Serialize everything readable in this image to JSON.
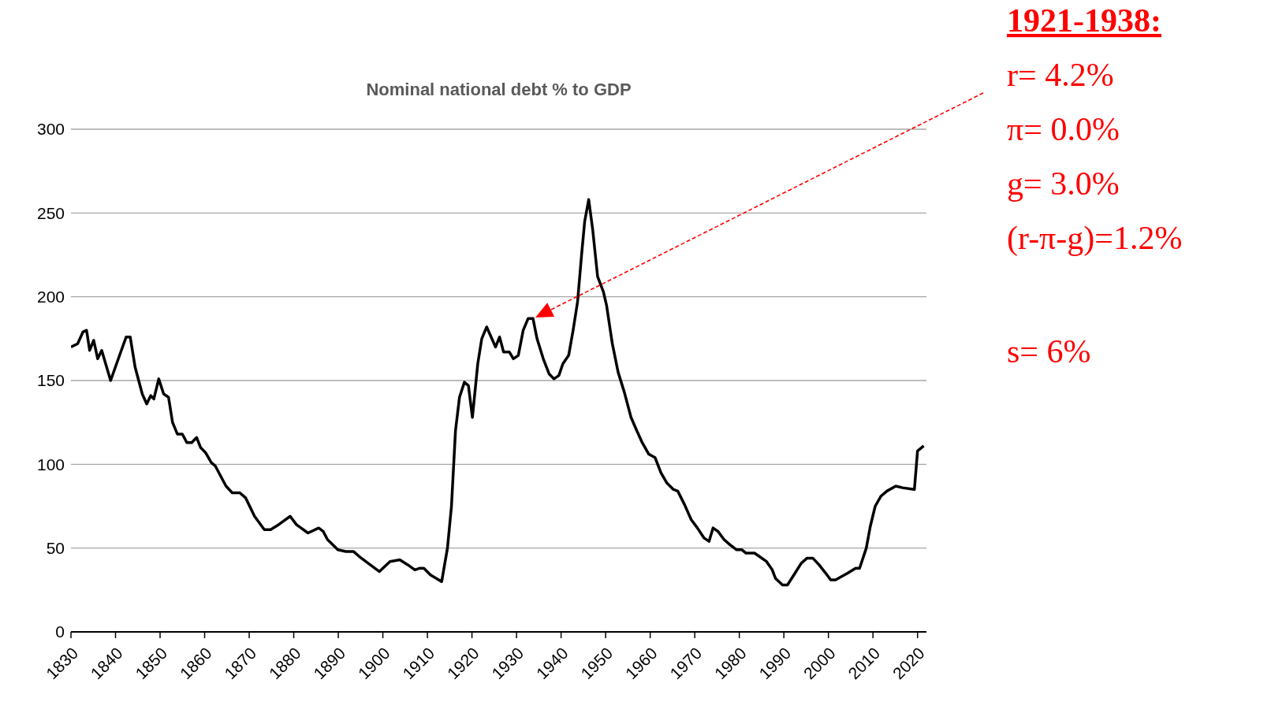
{
  "chart_data": {
    "type": "line",
    "title": "Nominal national debt % to GDP",
    "series": [
      {
        "color": "#000000",
        "x": [
          1830,
          1831.5,
          1832.7,
          1833.5,
          1834.2,
          1835.1,
          1836,
          1836.9,
          1838.9,
          1841.3,
          1842.4,
          1843.3,
          1844.4,
          1846,
          1847,
          1847.9,
          1848.6,
          1849.7,
          1850.8,
          1851.9,
          1852.8,
          1853.9,
          1855,
          1856,
          1857.1,
          1858.2,
          1859.1,
          1860.2,
          1861.5,
          1862.4,
          1864.8,
          1866.2,
          1867.9,
          1869.2,
          1871.2,
          1873.4,
          1874.8,
          1876.6,
          1879.2,
          1880.6,
          1883.2,
          1885.6,
          1886.6,
          1887.6,
          1889.9,
          1891.7,
          1893.4,
          1894.7,
          1896.7,
          1899.2,
          1901.6,
          1903.8,
          1905.6,
          1907.2,
          1908.3,
          1909.2,
          1910.7,
          1913.2,
          1914.5,
          1915.4,
          1916.3,
          1917.2,
          1918.3,
          1919.2,
          1920.1,
          1921.3,
          1922.2,
          1923.3,
          1925.3,
          1926.2,
          1927.1,
          1928.4,
          1929.3,
          1930.4,
          1931.5,
          1932.6,
          1933.7,
          1934.6,
          1936,
          1937.3,
          1938.4,
          1939.5,
          1940.4,
          1941.7,
          1942.7,
          1943.7,
          1944.6,
          1945.3,
          1946.2,
          1947.1,
          1948.2,
          1949.5,
          1950.2,
          1951.5,
          1952.8,
          1954.2,
          1955.7,
          1957,
          1958.2,
          1959.7,
          1961.1,
          1962.4,
          1963.7,
          1965.2,
          1966.2,
          1967.7,
          1969.2,
          1970.6,
          1972.1,
          1973.2,
          1974.1,
          1975.2,
          1976.6,
          1977.9,
          1979.4,
          1980.6,
          1981.5,
          1983.4,
          1984.5,
          1986.1,
          1987.4,
          1988.1,
          1989.7,
          1990.8,
          1992.5,
          1993.9,
          1995.2,
          1996.5,
          1997.9,
          1999.4,
          2000.5,
          2001.6,
          2004.3,
          2006.1,
          2007,
          2008.5,
          2009.4,
          2010.5,
          2011.8,
          2013.1,
          2015.1,
          2016.7,
          2019.3,
          2020,
          2021.4
        ],
        "values": [
          170,
          172,
          179,
          180,
          168,
          174,
          163,
          168,
          150,
          168,
          176,
          176,
          158,
          142,
          136,
          141,
          139,
          151,
          142,
          140,
          125,
          118,
          118,
          113,
          113,
          116,
          110,
          107,
          101,
          99,
          87,
          83,
          83,
          80,
          69,
          61,
          61,
          64,
          69,
          64,
          59,
          62,
          60,
          55,
          49,
          48,
          48,
          45,
          41,
          36,
          42,
          43,
          40,
          37,
          38,
          38,
          34,
          30,
          50,
          75,
          120,
          140,
          149,
          147,
          128,
          160,
          175,
          182,
          170,
          176,
          167,
          167,
          163,
          165,
          180,
          187,
          187,
          175,
          163,
          154,
          151,
          153,
          160,
          165,
          180,
          197,
          225,
          245,
          258,
          240,
          212,
          203,
          195,
          172,
          155,
          143,
          128,
          120,
          113,
          106,
          104,
          95,
          89,
          85,
          84,
          76,
          67,
          62,
          56,
          54,
          62,
          60,
          55,
          52,
          49,
          49,
          47,
          47,
          45,
          42,
          37,
          32,
          28,
          28,
          35,
          41,
          44,
          44,
          40,
          35,
          31,
          31,
          35,
          38,
          38,
          50,
          63,
          75,
          81,
          84,
          87,
          86,
          85,
          108,
          111
        ]
      }
    ],
    "xlim": [
      1830,
      2022
    ],
    "xticks": [
      1830,
      1840,
      1850,
      1860,
      1870,
      1880,
      1890,
      1900,
      1910,
      1920,
      1930,
      1940,
      1950,
      1960,
      1970,
      1980,
      1990,
      2000,
      2010,
      2020
    ],
    "ylim": [
      0,
      300
    ],
    "yticks": [
      0,
      50,
      100,
      150,
      200,
      250,
      300
    ],
    "grid": "y",
    "marker": "none",
    "line_style": "solid",
    "annotations": [
      "1921-1938:",
      "r= 4.2%",
      "π= 0.0%",
      "g= 3.0%",
      "(r-π-g)=1.2%",
      "s= 6%"
    ]
  }
}
